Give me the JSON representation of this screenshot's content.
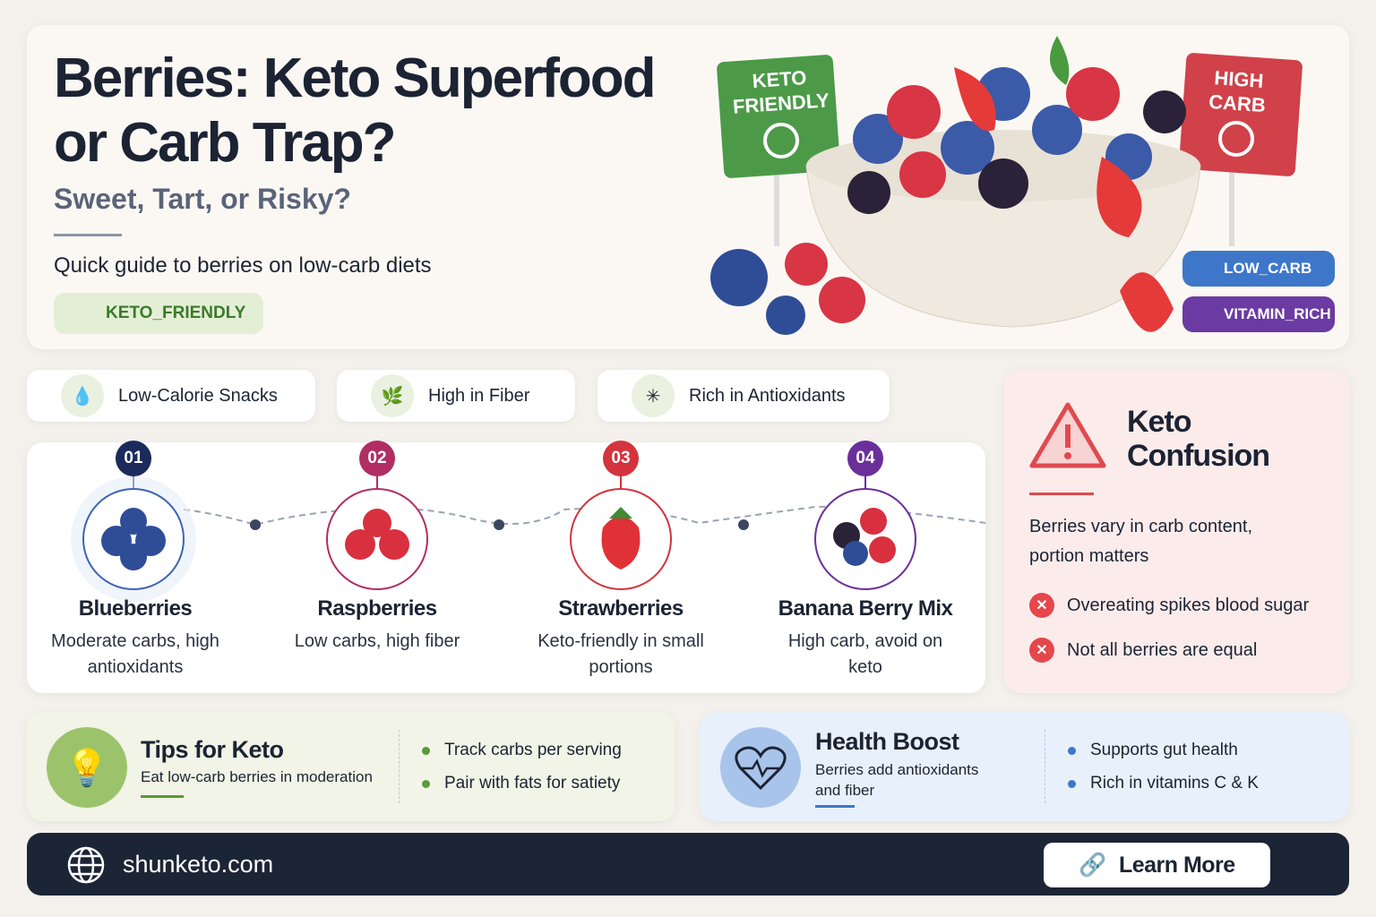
{
  "header": {
    "title": "Berries: Keto Superfood or Carb Trap?",
    "subtitle": "Sweet, Tart, or Risky?",
    "description": "Quick guide to berries on low-carb diets",
    "badge": "KETO_FRIENDLY"
  },
  "hero": {
    "sign_left": "KETO FRIENDLY",
    "sign_right": "HIGH CARB",
    "tags": [
      "LOW_CARB",
      "VITAMIN_RICH"
    ]
  },
  "features": [
    "Low-Calorie Snacks",
    "High in Fiber",
    "Rich in Antioxidants"
  ],
  "berries": [
    {
      "number": "01",
      "name": "Blueberries",
      "description": "Moderate carbs, high antioxidants"
    },
    {
      "number": "02",
      "name": "Raspberries",
      "description": "Low carbs, high fiber"
    },
    {
      "number": "03",
      "name": "Strawberries",
      "description": "Keto-friendly in small portions"
    },
    {
      "number": "04",
      "name": "Banana Berry Mix",
      "description": "High carb, avoid on keto"
    }
  ],
  "warning": {
    "title": "Keto Confusion",
    "text": "Berries vary in carb content, portion matters",
    "items": [
      "Overeating spikes blood sugar",
      "Not all berries are equal"
    ]
  },
  "tips": {
    "title": "Tips for Keto",
    "subtitle": "Eat low-carb berries in moderation",
    "items": [
      "Track carbs per serving",
      "Pair with fats for satiety"
    ]
  },
  "health": {
    "title": "Health Boost",
    "subtitle": "Berries add antioxidants and fiber",
    "items": [
      "Supports gut health",
      "Rich in vitamins C & K"
    ]
  },
  "footer": {
    "site": "shunketo.com",
    "button": "Learn More"
  }
}
